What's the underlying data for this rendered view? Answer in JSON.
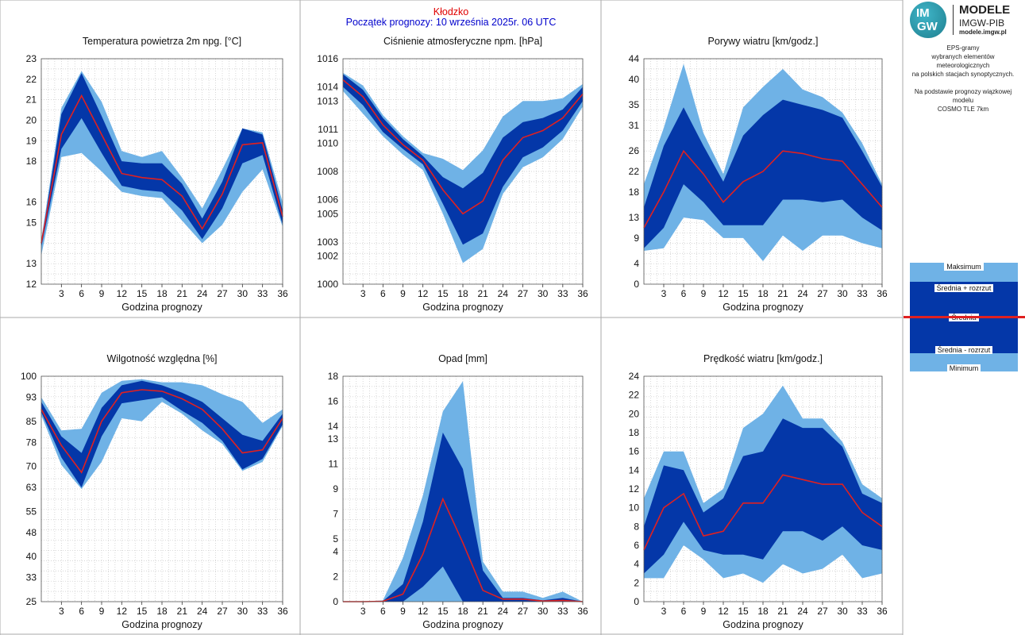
{
  "header": {
    "station": "Kłodzko",
    "forecast_start": "Początek prognozy: 10 września 2025r. 06 UTC"
  },
  "logo": {
    "circle_top": "IM",
    "circle_bottom": "GW",
    "title": "MODELE",
    "subtitle": "IMGW-PIB",
    "url": "modele.imgw.pl"
  },
  "description": {
    "line1": "EPS-gramy",
    "line2": "wybranych elementów meteorologicznych",
    "line3": "na polskich stacjach  synoptycznych.",
    "line4": "Na podstawie prognozy wiązkowej modelu",
    "line5": "COSMO TLE 7km"
  },
  "legend": {
    "max": "Maksimum",
    "mean_plus": "Średnia + rozrzut",
    "mean": "Średnia",
    "mean_minus": "Średnia - rozrzut",
    "min": "Minimum"
  },
  "colors": {
    "envelope": "#6fb2e6",
    "spread": "#0437a8",
    "mean": "#e02020",
    "grid": "#c8c8c8",
    "frame": "#aaaaaa"
  },
  "chart_data": [
    {
      "type": "area",
      "title": "Temperatura powietrza 2m npg. [°C]",
      "xlabel": "Godzina prognozy",
      "x": [
        0,
        3,
        6,
        9,
        12,
        15,
        18,
        21,
        24,
        27,
        30,
        33,
        36
      ],
      "xticks": [
        3,
        6,
        9,
        12,
        15,
        18,
        21,
        24,
        27,
        30,
        33,
        36
      ],
      "xlim": [
        0,
        36
      ],
      "ylim": [
        12,
        23
      ],
      "yticks": [
        12,
        13,
        15,
        16,
        18,
        19,
        20,
        21,
        22,
        23
      ],
      "max": [
        14.2,
        20.6,
        22.4,
        20.9,
        18.5,
        18.2,
        18.5,
        17.2,
        15.7,
        17.6,
        19.6,
        19.4,
        16.0
      ],
      "mean_plus": [
        14.0,
        20.3,
        22.3,
        20.2,
        18.0,
        17.9,
        17.9,
        16.9,
        15.2,
        17.0,
        19.6,
        19.3,
        15.6
      ],
      "mean": [
        14.0,
        19.3,
        21.2,
        19.3,
        17.4,
        17.2,
        17.1,
        16.3,
        14.7,
        16.4,
        18.8,
        18.9,
        15.3
      ],
      "mean_minus": [
        13.8,
        18.6,
        20.1,
        18.4,
        16.8,
        16.6,
        16.5,
        15.6,
        14.2,
        15.7,
        17.9,
        18.3,
        14.9
      ],
      "min": [
        13.4,
        18.2,
        18.4,
        17.5,
        16.5,
        16.3,
        16.2,
        15.1,
        14.0,
        14.9,
        16.5,
        17.6,
        14.8
      ]
    },
    {
      "type": "area",
      "title": "Ciśnienie atmosferyczne npm. [hPa]",
      "xlabel": "Godzina prognozy",
      "x": [
        0,
        3,
        6,
        9,
        12,
        15,
        18,
        21,
        24,
        27,
        30,
        33,
        36
      ],
      "xticks": [
        3,
        6,
        9,
        12,
        15,
        18,
        21,
        24,
        27,
        30,
        33,
        36
      ],
      "xlim": [
        0,
        36
      ],
      "ylim": [
        1000,
        1016
      ],
      "yticks": [
        1000,
        1002,
        1003,
        1005,
        1006,
        1008,
        1010,
        1011,
        1013,
        1014,
        1016
      ],
      "max": [
        1015.0,
        1014.1,
        1012.0,
        1010.5,
        1009.3,
        1008.9,
        1008.1,
        1009.5,
        1011.9,
        1013.0,
        1013.0,
        1013.2,
        1014.2
      ],
      "mean_plus": [
        1014.9,
        1013.8,
        1011.8,
        1010.3,
        1009.1,
        1007.6,
        1006.8,
        1007.9,
        1010.4,
        1011.5,
        1011.8,
        1012.4,
        1014.0
      ],
      "mean": [
        1014.5,
        1013.3,
        1011.3,
        1009.9,
        1008.8,
        1006.7,
        1005.0,
        1005.9,
        1008.8,
        1010.4,
        1010.9,
        1011.8,
        1013.5
      ],
      "mean_minus": [
        1014.0,
        1012.7,
        1010.8,
        1009.6,
        1008.5,
        1005.7,
        1002.8,
        1003.6,
        1006.9,
        1009.0,
        1009.7,
        1010.9,
        1013.0
      ],
      "min": [
        1013.7,
        1012.1,
        1010.5,
        1009.2,
        1008.1,
        1005.0,
        1001.5,
        1002.5,
        1006.4,
        1008.3,
        1009.0,
        1010.3,
        1012.6
      ]
    },
    {
      "type": "area",
      "title": "Porywy wiatru [km/godz.]",
      "xlabel": "Godzina prognozy",
      "x": [
        0,
        3,
        6,
        9,
        12,
        15,
        18,
        21,
        24,
        27,
        30,
        33,
        36
      ],
      "xticks": [
        3,
        6,
        9,
        12,
        15,
        18,
        21,
        24,
        27,
        30,
        33,
        36
      ],
      "xlim": [
        0,
        36
      ],
      "ylim": [
        0,
        44
      ],
      "yticks": [
        0,
        4,
        9,
        13,
        18,
        22,
        26,
        31,
        35,
        40,
        44
      ],
      "max": [
        19.5,
        30.5,
        43.0,
        29.5,
        21.5,
        34.5,
        38.5,
        42.0,
        38.0,
        36.5,
        33.5,
        27.5,
        19.5
      ],
      "mean_plus": [
        15.0,
        27.0,
        34.5,
        27.0,
        20.0,
        29.0,
        33.0,
        36.0,
        35.0,
        34.0,
        32.5,
        26.0,
        19.0
      ],
      "mean": [
        11.0,
        18.0,
        26.0,
        21.5,
        16.0,
        20.0,
        22.0,
        26.0,
        25.5,
        24.5,
        24.0,
        19.5,
        15.0
      ],
      "mean_minus": [
        7.0,
        11.0,
        19.5,
        16.0,
        11.5,
        11.5,
        11.5,
        16.5,
        16.5,
        16.0,
        16.5,
        13.0,
        10.5
      ],
      "min": [
        6.5,
        7.0,
        13.0,
        12.5,
        9.0,
        9.0,
        4.5,
        9.5,
        6.5,
        9.5,
        9.5,
        8.0,
        7.0
      ]
    },
    {
      "type": "area",
      "title": "Wilgotność względna [%]",
      "xlabel": "Godzina prognozy",
      "x": [
        0,
        3,
        6,
        9,
        12,
        15,
        18,
        21,
        24,
        27,
        30,
        33,
        36
      ],
      "xticks": [
        3,
        6,
        9,
        12,
        15,
        18,
        21,
        24,
        27,
        30,
        33,
        36
      ],
      "xlim": [
        0,
        36
      ],
      "ylim": [
        25,
        100
      ],
      "yticks": [
        25,
        33,
        40,
        48,
        55,
        63,
        70,
        78,
        85,
        93,
        100
      ],
      "max": [
        93.0,
        82.0,
        82.5,
        94.5,
        98.5,
        99.0,
        98.0,
        98.0,
        97.0,
        94.0,
        91.5,
        84.5,
        89.0
      ],
      "mean_plus": [
        91.5,
        80.0,
        74.5,
        89.5,
        97.0,
        98.5,
        97.0,
        94.5,
        91.5,
        86.0,
        80.5,
        78.5,
        87.5
      ],
      "mean": [
        89.0,
        77.0,
        68.0,
        85.0,
        94.5,
        95.5,
        95.0,
        92.5,
        89.0,
        82.5,
        74.5,
        75.5,
        86.0
      ],
      "mean_minus": [
        88.0,
        73.0,
        63.0,
        80.0,
        91.0,
        92.0,
        93.0,
        88.5,
        84.5,
        78.5,
        69.0,
        72.5,
        84.0
      ],
      "min": [
        87.0,
        70.5,
        62.5,
        71.5,
        86.0,
        85.0,
        91.5,
        87.5,
        82.0,
        77.5,
        68.5,
        71.5,
        83.5
      ]
    },
    {
      "type": "area",
      "title": "Opad [mm]",
      "xlabel": "Godzina prognozy",
      "x": [
        0,
        3,
        6,
        9,
        12,
        15,
        18,
        21,
        24,
        27,
        30,
        33,
        36
      ],
      "xticks": [
        3,
        6,
        9,
        12,
        15,
        18,
        21,
        24,
        27,
        30,
        33,
        36
      ],
      "xlim": [
        0,
        36
      ],
      "ylim": [
        0,
        18
      ],
      "yticks": [
        0,
        2,
        4,
        5,
        7,
        9,
        11,
        13,
        14,
        16,
        18
      ],
      "max": [
        0.0,
        0.0,
        0.1,
        3.5,
        8.5,
        15.2,
        17.6,
        3.2,
        0.8,
        0.8,
        0.3,
        0.8,
        0.0
      ],
      "mean_plus": [
        0.0,
        0.0,
        0.05,
        1.4,
        6.4,
        13.5,
        10.6,
        2.5,
        0.3,
        0.3,
        0.1,
        0.3,
        0.0
      ],
      "mean": [
        0.0,
        0.0,
        0.03,
        0.6,
        3.8,
        8.2,
        4.7,
        0.9,
        0.2,
        0.2,
        0.05,
        0.1,
        0.0
      ],
      "mean_minus": [
        0.0,
        0.0,
        0.0,
        0.0,
        1.2,
        2.8,
        0.0,
        0.0,
        0.0,
        0.0,
        0.0,
        0.0,
        0.0
      ],
      "min": [
        0.0,
        0.0,
        0.0,
        0.0,
        0.0,
        0.0,
        0.0,
        0.0,
        0.0,
        0.0,
        0.0,
        0.0,
        0.0
      ]
    },
    {
      "type": "area",
      "title": "Prędkość wiatru [km/godz.]",
      "xlabel": "Godzina prognozy",
      "x": [
        0,
        3,
        6,
        9,
        12,
        15,
        18,
        21,
        24,
        27,
        30,
        33,
        36
      ],
      "xticks": [
        3,
        6,
        9,
        12,
        15,
        18,
        21,
        24,
        27,
        30,
        33,
        36
      ],
      "xlim": [
        0,
        36
      ],
      "ylim": [
        0,
        24
      ],
      "yticks": [
        0,
        2,
        4,
        6,
        8,
        10,
        12,
        14,
        16,
        18,
        20,
        22,
        24
      ],
      "max": [
        11.0,
        16.0,
        16.0,
        10.5,
        12.0,
        18.5,
        20.0,
        23.0,
        19.5,
        19.5,
        17.0,
        12.5,
        11.0
      ],
      "mean_plus": [
        8.0,
        14.5,
        14.0,
        9.5,
        11.0,
        15.5,
        16.0,
        19.5,
        18.5,
        18.5,
        16.5,
        11.5,
        10.5
      ],
      "mean": [
        5.5,
        10.0,
        11.5,
        7.0,
        7.5,
        10.5,
        10.5,
        13.5,
        13.0,
        12.5,
        12.5,
        9.5,
        8.0
      ],
      "mean_minus": [
        3.0,
        5.0,
        8.5,
        5.5,
        5.0,
        5.0,
        4.5,
        7.5,
        7.5,
        6.5,
        8.0,
        6.0,
        5.5
      ],
      "min": [
        2.5,
        2.5,
        6.0,
        4.5,
        2.5,
        3.0,
        2.0,
        4.0,
        3.0,
        3.5,
        5.0,
        2.5,
        3.0
      ]
    }
  ]
}
